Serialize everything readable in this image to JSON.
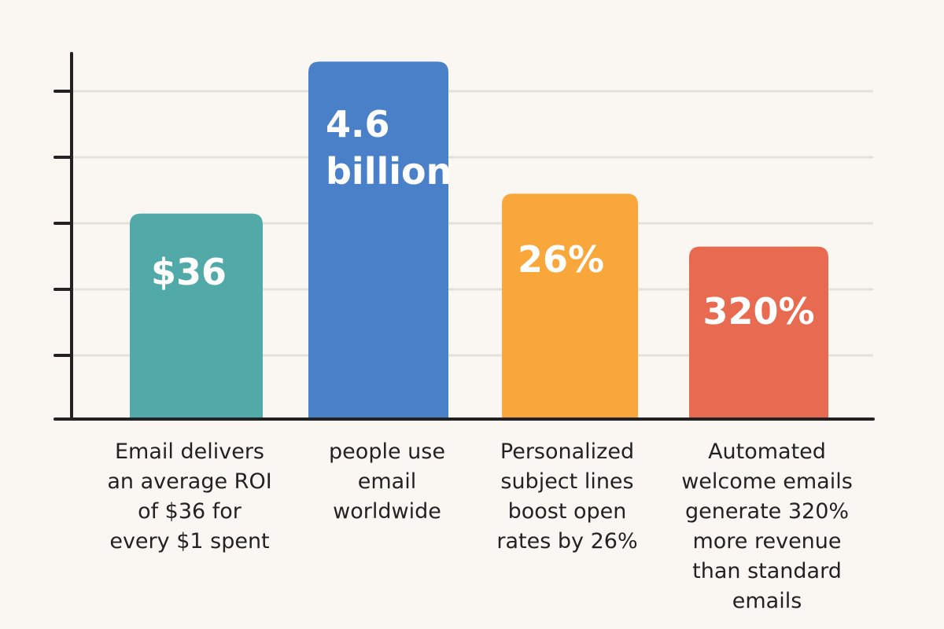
{
  "chart_data": {
    "type": "bar",
    "categories": [
      "Email delivers\nan average ROI\nof $36 for\nevery $1 spent",
      "people use\nemail\nworldwide",
      "Personalized\nsubject lines\nboost open\nrates by 26%",
      "Automated\nwelcome emails\ngenerate 320%\nmore revenue\nthan standard emails"
    ],
    "values": [
      3.1,
      5.4,
      3.4,
      2.6
    ],
    "value_labels": [
      "$36",
      "4.6\nbillion",
      "26%",
      "320%"
    ],
    "colors": [
      "#52aaa8",
      "#4a80c8",
      "#f9a63a",
      "#e86a50"
    ],
    "ylim": [
      0,
      5.5
    ],
    "grid": true,
    "title": "",
    "xlabel": "",
    "ylabel": ""
  }
}
